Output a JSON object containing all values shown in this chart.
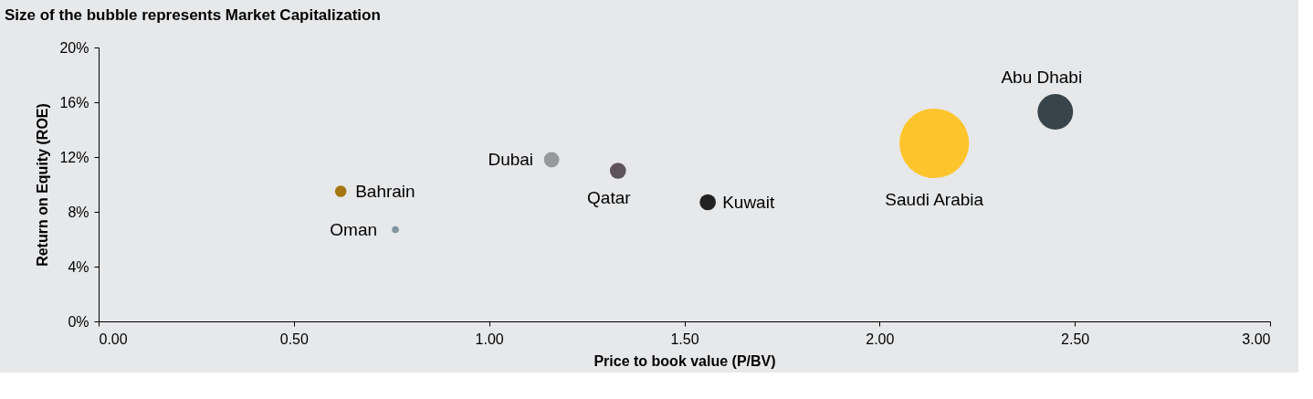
{
  "chart_data": {
    "type": "bubble",
    "title": "Size of the bubble represents Market Capitalization",
    "xlabel": "Price to book value (P/BV)",
    "ylabel": "Return on Equity (ROE)",
    "xlim": [
      0,
      3
    ],
    "xticks": [
      {
        "value": 0,
        "label": "0.00"
      },
      {
        "value": 0.5,
        "label": "0.50"
      },
      {
        "value": 1,
        "label": "1.00"
      },
      {
        "value": 1.5,
        "label": "1.50"
      },
      {
        "value": 2,
        "label": "2.00"
      },
      {
        "value": 2.5,
        "label": "2.50"
      },
      {
        "value": 3,
        "label": "3.00"
      }
    ],
    "ylim": [
      0,
      20
    ],
    "yticks": [
      {
        "value": 0,
        "label": "0%"
      },
      {
        "value": 4,
        "label": "4%"
      },
      {
        "value": 8,
        "label": "8%"
      },
      {
        "value": 12,
        "label": "12%"
      },
      {
        "value": 16,
        "label": "16%"
      },
      {
        "value": 20,
        "label": "20%"
      }
    ],
    "grid": false,
    "legend": false,
    "series": [
      {
        "name": "Bahrain",
        "color": "#a57710",
        "x": [
          0.62
        ],
        "values": [
          9.5
        ],
        "sizes": [
          0.027
        ]
      },
      {
        "name": "Oman",
        "color": "#7f95a0",
        "x": [
          0.76
        ],
        "values": [
          6.7
        ],
        "sizes": [
          0.01
        ]
      },
      {
        "name": "Dubai",
        "color": "#98999b",
        "x": [
          1.16
        ],
        "values": [
          11.8
        ],
        "sizes": [
          0.049
        ]
      },
      {
        "name": "Qatar",
        "color": "#5e5358",
        "x": [
          1.33
        ],
        "values": [
          11.0
        ],
        "sizes": [
          0.054
        ]
      },
      {
        "name": "Kuwait",
        "color": "#222222",
        "x": [
          1.56
        ],
        "values": [
          8.7
        ],
        "sizes": [
          0.054
        ]
      },
      {
        "name": "Saudi Arabia",
        "color": "#fec42c",
        "x": [
          2.14
        ],
        "values": [
          13.0
        ],
        "sizes": [
          1
        ]
      },
      {
        "name": "Abu Dhabi",
        "color": "#37444a",
        "x": [
          2.45
        ],
        "values": [
          15.3
        ],
        "sizes": [
          0.26
        ]
      }
    ]
  }
}
